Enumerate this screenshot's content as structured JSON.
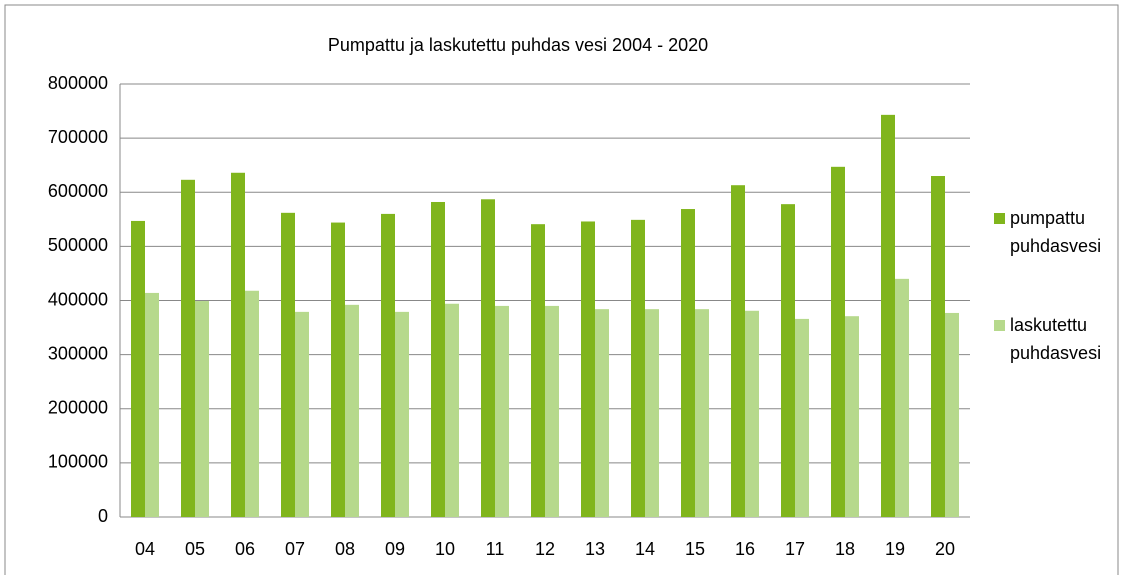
{
  "chart_data": {
    "type": "bar",
    "title": "Pumpattu ja laskutettu puhdas vesi 2004 - 2020",
    "categories": [
      "04",
      "05",
      "06",
      "07",
      "08",
      "09",
      "10",
      "11",
      "12",
      "13",
      "14",
      "15",
      "16",
      "17",
      "18",
      "19",
      "20"
    ],
    "series": [
      {
        "name": "pumpattu puhdasvesi",
        "color": "#80b51c",
        "values": [
          547000,
          623000,
          636000,
          562000,
          544000,
          560000,
          582000,
          587000,
          541000,
          546000,
          549000,
          569000,
          613000,
          578000,
          647000,
          743000,
          630000
        ]
      },
      {
        "name": "laskutettu puhdasvesi",
        "color": "#b6d98c",
        "values": [
          414000,
          399000,
          418000,
          379000,
          392000,
          379000,
          394000,
          390000,
          390000,
          384000,
          384000,
          384000,
          381000,
          366000,
          371000,
          440000,
          377000
        ]
      }
    ],
    "ylim": [
      0,
      800000
    ],
    "yticks": [
      0,
      100000,
      200000,
      300000,
      400000,
      500000,
      600000,
      700000,
      800000
    ],
    "grid": true,
    "legend": "right"
  }
}
